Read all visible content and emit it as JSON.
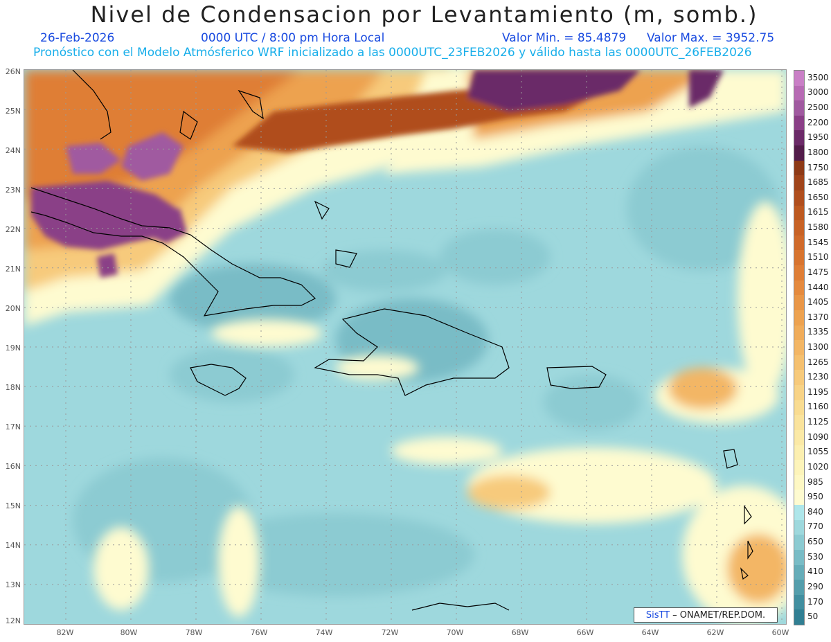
{
  "title": "Nivel de Condensacion por Levantamiento (m, somb.)",
  "date": "26-Feb-2026",
  "time": "0000 UTC / 8:00 pm Hora Local",
  "valmin": "Valor Min. = 85.4879",
  "valmax": "Valor Max. = 3952.75",
  "model_line": "Pronóstico con el Modelo Atmósferico WRF inicializado a las 0000UTC_23FEB2026 y válido hasta las  0000UTC_26FEB2026",
  "credit": {
    "brand": "SisTT",
    "rest": "– ONAMET/REP.DOM."
  },
  "lat_labels": [
    "26N",
    "25N",
    "24N",
    "23N",
    "22N",
    "21N",
    "20N",
    "19N",
    "18N",
    "17N",
    "16N",
    "15N",
    "14N",
    "13N",
    "12N"
  ],
  "lon_labels": [
    "82W",
    "80W",
    "78W",
    "76W",
    "74W",
    "72W",
    "70W",
    "68W",
    "66W",
    "64W",
    "62W",
    "60W"
  ],
  "colorbar": {
    "labels": [
      "3500",
      "3000",
      "2500",
      "2200",
      "1950",
      "1800",
      "1750",
      "1685",
      "1650",
      "1615",
      "1580",
      "1545",
      "1510",
      "1475",
      "1440",
      "1405",
      "1370",
      "1335",
      "1300",
      "1265",
      "1230",
      "1195",
      "1160",
      "1125",
      "1090",
      "1055",
      "1020",
      "985",
      "950",
      "840",
      "770",
      "650",
      "530",
      "410",
      "290",
      "170",
      "50"
    ],
    "colors": [
      "#c97fc6",
      "#b76bb4",
      "#a05aa0",
      "#8a3f87",
      "#6b2a68",
      "#521c4a",
      "#8e3a16",
      "#a0441a",
      "#b04e1d",
      "#bd5920",
      "#c86225",
      "#d06a2a",
      "#d8742f",
      "#df7e36",
      "#e58a3e",
      "#e99647",
      "#eda250",
      "#f0ac5a",
      "#f3b665",
      "#f5c06f",
      "#f7ca7b",
      "#f8d386",
      "#f9dc91",
      "#fae39c",
      "#fbe9a6",
      "#fcefb0",
      "#fdf4ba",
      "#fef8c4",
      "#fefbd0",
      "#aee6ea",
      "#9ed8dd",
      "#8ccbd2",
      "#79bcc6",
      "#66adb9",
      "#549eac",
      "#428fa0",
      "#317f93"
    ]
  }
}
